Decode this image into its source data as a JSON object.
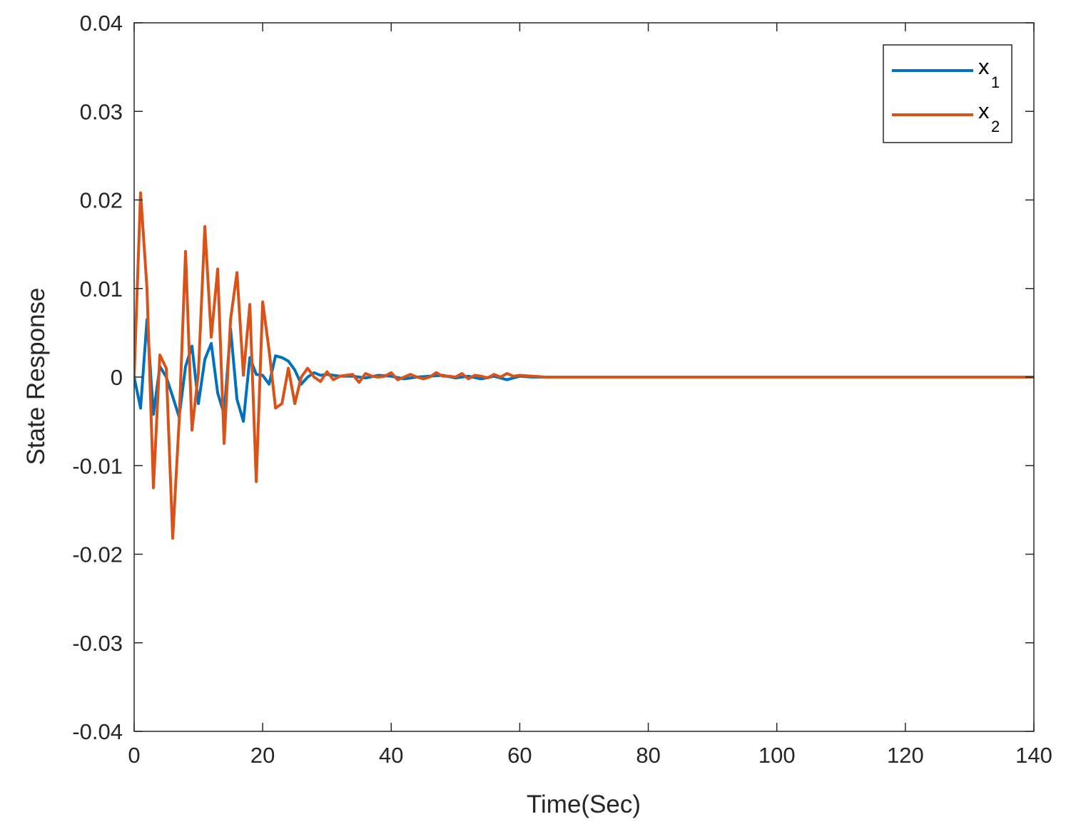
{
  "chart_data": {
    "type": "line",
    "title": "",
    "xlabel": "Time(Sec)",
    "ylabel": "State Response",
    "xlim": [
      0,
      140
    ],
    "ylim": [
      -0.04,
      0.04
    ],
    "xticks": [
      0,
      20,
      40,
      60,
      80,
      100,
      120,
      140
    ],
    "yticks": [
      -0.04,
      -0.03,
      -0.02,
      -0.01,
      0,
      0.01,
      0.02,
      0.03,
      0.04
    ],
    "xtick_labels": [
      "0",
      "20",
      "40",
      "60",
      "80",
      "100",
      "120",
      "140"
    ],
    "ytick_labels": [
      "-0.04",
      "-0.03",
      "-0.02",
      "-0.01",
      "0",
      "0.01",
      "0.02",
      "0.03",
      "0.04"
    ],
    "grid": false,
    "legend_position": "top-right",
    "series": [
      {
        "name": "x",
        "subscript": "1",
        "color": "#0072BD",
        "x": [
          0,
          1,
          2,
          3,
          4,
          5,
          6,
          7,
          8,
          9,
          10,
          11,
          12,
          13,
          14,
          15,
          16,
          17,
          18,
          19,
          20,
          21,
          22,
          23,
          24,
          25,
          26,
          27,
          28,
          29,
          30,
          32,
          34,
          36,
          38,
          40,
          42,
          44,
          46,
          48,
          50,
          52,
          54,
          56,
          58,
          60,
          62,
          64,
          70,
          80,
          90,
          100,
          110,
          120,
          130,
          140
        ],
        "y": [
          0,
          -0.0035,
          0.0065,
          -0.0042,
          0.0012,
          0.0,
          -0.0022,
          -0.0045,
          0.0012,
          0.0035,
          -0.003,
          0.002,
          0.0038,
          -0.0018,
          -0.0042,
          0.0055,
          -0.0025,
          -0.005,
          0.0022,
          0.0003,
          0.0002,
          -0.0008,
          0.0024,
          0.0022,
          0.0018,
          0.0008,
          -0.0008,
          0.0,
          0.0005,
          0.0002,
          0.0003,
          0.0001,
          0.0001,
          -0.0001,
          0.0002,
          0.0001,
          -0.0002,
          0.0,
          0.0001,
          0.0002,
          -0.0001,
          0.0001,
          -0.0002,
          0.0001,
          -0.0003,
          0.0001,
          0.0,
          0.0,
          0.0,
          0.0,
          0.0,
          0.0,
          0.0,
          0.0,
          0.0,
          0.0
        ]
      },
      {
        "name": "x",
        "subscript": "2",
        "color": "#D95319",
        "x": [
          0,
          1,
          2,
          3,
          4,
          5,
          6,
          7,
          8,
          9,
          10,
          11,
          12,
          13,
          14,
          15,
          16,
          17,
          18,
          19,
          20,
          21,
          22,
          23,
          24,
          25,
          26,
          27,
          28,
          29,
          30,
          31,
          32,
          33,
          34,
          35,
          36,
          37,
          38,
          39,
          40,
          41,
          42,
          43,
          44,
          45,
          46,
          47,
          48,
          49,
          50,
          51,
          52,
          53,
          54,
          55,
          56,
          57,
          58,
          59,
          60,
          62,
          64,
          70,
          80,
          90,
          100,
          110,
          120,
          130,
          140
        ],
        "y": [
          0,
          0.0208,
          0.01,
          -0.0125,
          0.0025,
          0.001,
          -0.0182,
          -0.005,
          0.0142,
          -0.006,
          0.0005,
          0.017,
          0.0045,
          0.0122,
          -0.0075,
          0.0065,
          0.0118,
          0.0002,
          0.0082,
          -0.0118,
          0.0085,
          0.003,
          -0.0035,
          -0.003,
          0.001,
          -0.003,
          0.0,
          0.001,
          0.0,
          -0.0005,
          0.0006,
          -0.0003,
          0.0001,
          0.0002,
          0.0003,
          -0.0006,
          0.0004,
          0.0001,
          0.0,
          0.0001,
          0.0005,
          -0.0003,
          0.0,
          0.0003,
          0.0,
          -0.0002,
          0.0,
          0.0005,
          0.0001,
          0.0001,
          0.0,
          0.0004,
          -0.0002,
          0.0002,
          0.0001,
          -0.0001,
          0.0003,
          0.0,
          0.0004,
          0.0001,
          0.0002,
          0.0001,
          0.0,
          0.0,
          0.0,
          0.0,
          0.0,
          0.0,
          0.0,
          0.0,
          0.0
        ]
      }
    ]
  }
}
